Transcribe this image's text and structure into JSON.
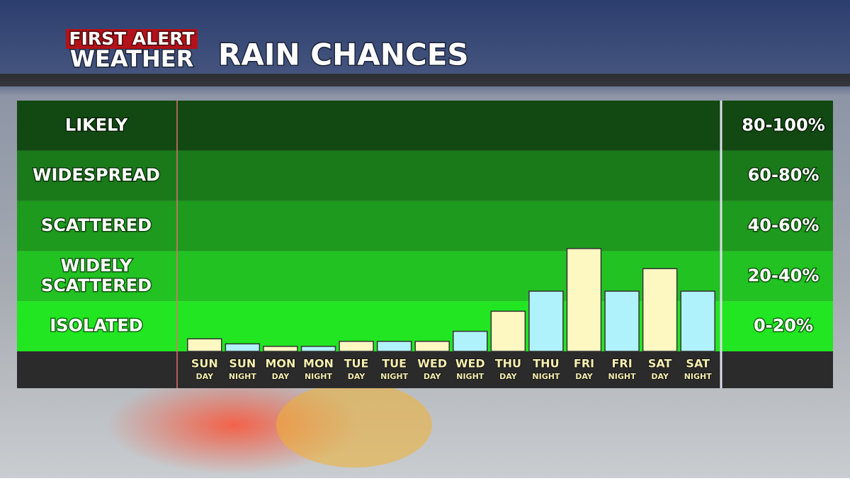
{
  "header": {
    "brand_top": "FIRST ALERT",
    "brand_bottom": "WEATHER"
  },
  "chart_data": {
    "type": "bar",
    "title": "RAIN CHANCES",
    "ylim": [
      0,
      100
    ],
    "bands": [
      {
        "label": "LIKELY",
        "range": "80-100%",
        "from": 80,
        "to": 100,
        "color": "#124912"
      },
      {
        "label": "WIDESPREAD",
        "range": "60-80%",
        "from": 60,
        "to": 80,
        "color": "#1a7a1a"
      },
      {
        "label": "SCATTERED",
        "range": "40-60%",
        "from": 40,
        "to": 60,
        "color": "#1e9a1e"
      },
      {
        "label": "WIDELY SCATTERED",
        "range": "20-40%",
        "from": 20,
        "to": 40,
        "color": "#22c222"
      },
      {
        "label": "ISOLATED",
        "range": "0-20%",
        "from": 0,
        "to": 20,
        "color": "#22e622"
      }
    ],
    "categories": [
      {
        "day": "SUN",
        "period": "DAY"
      },
      {
        "day": "SUN",
        "period": "NIGHT"
      },
      {
        "day": "MON",
        "period": "DAY"
      },
      {
        "day": "MON",
        "period": "NIGHT"
      },
      {
        "day": "TUE",
        "period": "DAY"
      },
      {
        "day": "TUE",
        "period": "NIGHT"
      },
      {
        "day": "WED",
        "period": "DAY"
      },
      {
        "day": "WED",
        "period": "NIGHT"
      },
      {
        "day": "THU",
        "period": "DAY"
      },
      {
        "day": "THU",
        "period": "NIGHT"
      },
      {
        "day": "FRI",
        "period": "DAY"
      },
      {
        "day": "FRI",
        "period": "NIGHT"
      },
      {
        "day": "SAT",
        "period": "DAY"
      },
      {
        "day": "SAT",
        "period": "NIGHT"
      }
    ],
    "values": [
      5,
      3,
      2,
      2,
      4,
      4,
      4,
      8,
      16,
      24,
      41,
      24,
      33,
      24
    ],
    "colors": [
      "#fdf8c2",
      "#b0f2fb",
      "#fdf8c2",
      "#b0f2fb",
      "#fdf8c2",
      "#b0f2fb",
      "#fdf8c2",
      "#b0f2fb",
      "#fdf8c2",
      "#b0f2fb",
      "#fdf8c2",
      "#b0f2fb",
      "#fdf8c2",
      "#b0f2fb"
    ]
  }
}
